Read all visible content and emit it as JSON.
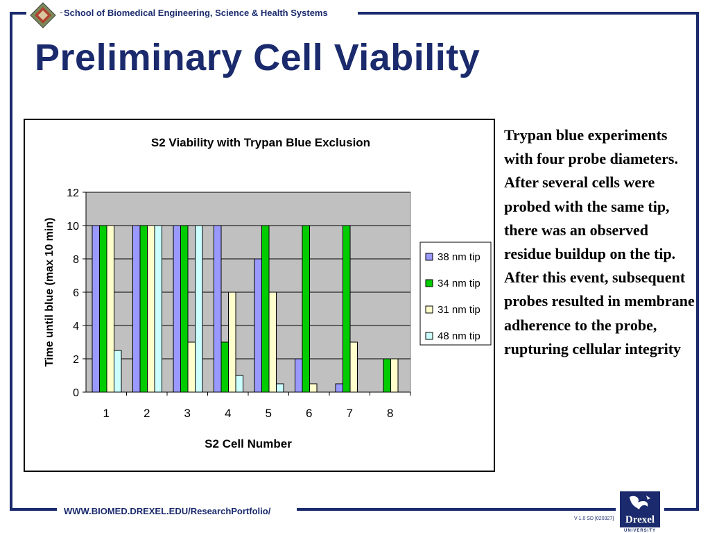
{
  "header": {
    "school": "School of Biomedical Engineering, Science & Health Systems"
  },
  "title": "Preliminary Cell Viability",
  "side_text": "Trypan blue experiments with four probe diameters. After several cells were probed with the same tip, there was an observed residue buildup on the tip. After this event, subsequent probes resulted in membrane adherence to the probe, rupturing cellular integrity",
  "footer": {
    "url": "WWW.BIOMED.DREXEL.EDU/ResearchPortfolio/",
    "version": "V 1.0 SD [020327]"
  },
  "logo": {
    "drexel_text": "Drexel",
    "university_text": "UNIVERSITY"
  },
  "colors": {
    "brand": "#1a2a6c",
    "plot_bg": "#c0c0c0"
  },
  "chart_data": {
    "type": "bar",
    "title": "S2 Viability with Trypan Blue Exclusion",
    "xlabel": "S2 Cell Number",
    "ylabel": "Time until blue (max 10 min)",
    "categories": [
      "1",
      "2",
      "3",
      "4",
      "5",
      "6",
      "7",
      "8"
    ],
    "ylim": [
      0,
      12
    ],
    "yticks": [
      0,
      2,
      4,
      6,
      8,
      10,
      12
    ],
    "grid": true,
    "legend": "right",
    "series": [
      {
        "name": "38 nm tip",
        "color": "#9999ff",
        "values": [
          10,
          10,
          10,
          10,
          8,
          2,
          0.5,
          0
        ]
      },
      {
        "name": "34 nm tip",
        "color": "#00cc00",
        "values": [
          10,
          10,
          10,
          3,
          10,
          10,
          10,
          2
        ]
      },
      {
        "name": "31 nm tip",
        "color": "#ffffcc",
        "values": [
          10,
          10,
          3,
          6,
          6,
          0.5,
          3,
          2
        ]
      },
      {
        "name": "48 nm tip",
        "color": "#ccffff",
        "values": [
          2.5,
          10,
          10,
          1,
          0.5,
          0,
          0,
          0
        ]
      }
    ]
  }
}
